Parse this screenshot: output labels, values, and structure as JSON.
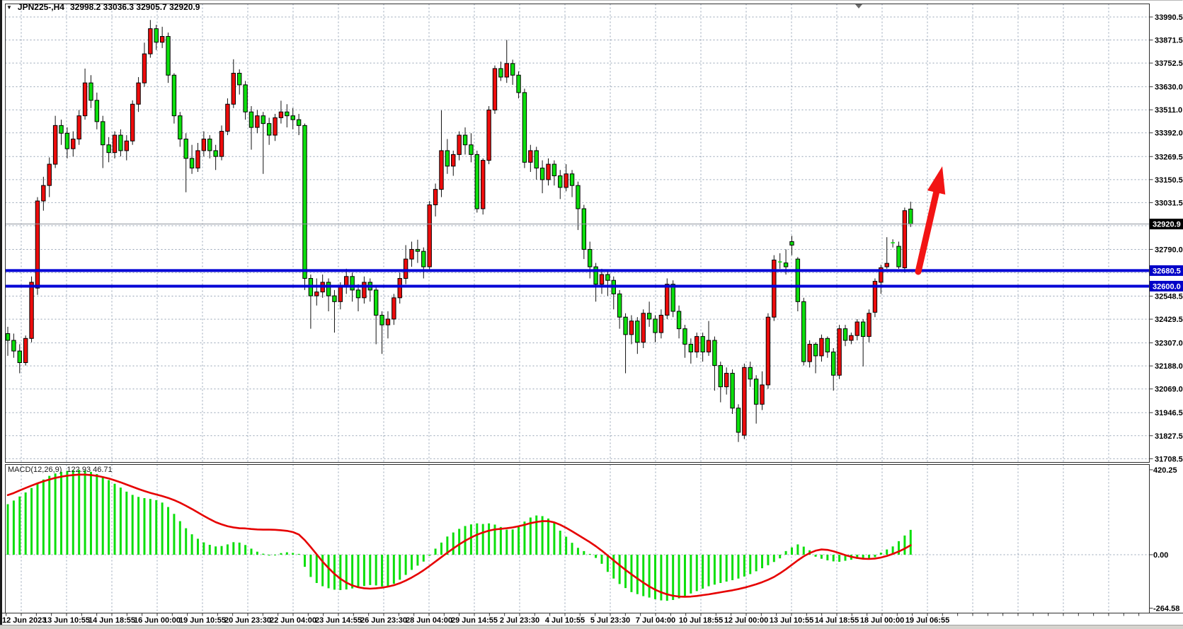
{
  "window": {
    "title_symbol": "JPN225-,H4",
    "title_values": "32998.2 33036.3 32905.7 32920.9"
  },
  "price_axis": {
    "values": [
      "33990.5",
      "33871.5",
      "33752.5",
      "33630.0",
      "33511.0",
      "33392.0",
      "33269.5",
      "33150.5",
      "33031.5",
      "32790.0",
      "32548.5",
      "32429.5",
      "32307.0",
      "32188.0",
      "32069.0",
      "31946.5",
      "31827.5",
      "31708.5"
    ]
  },
  "grid_extra_prices": [
    32912.5,
    32669.5
  ],
  "time_axis": {
    "labels": [
      "12 Jun 2023",
      "13 Jun 10:55",
      "14 Jun 18:55",
      "16 Jun 00:00",
      "19 Jun 10:55",
      "20 Jun 23:30",
      "22 Jun 04:00",
      "23 Jun 14:55",
      "26 Jun 23:30",
      "28 Jun 04:00",
      "29 Jun 14:55",
      "2 Jul 23:30",
      "4 Jul 10:55",
      "5 Jul 23:30",
      "7 Jul 04:00",
      "10 Jul 18:55",
      "12 Jul 00:00",
      "13 Jul 10:55",
      "14 Jul 18:55",
      "18 Jul 00:00",
      "19 Jul 06:55"
    ]
  },
  "hlines": [
    {
      "price": 32680.5,
      "label": "32680.5"
    },
    {
      "price": 32600.0,
      "label": "32600.0"
    }
  ],
  "current_price": {
    "price": 32920.9,
    "label": "32920.9"
  },
  "macd_panel": {
    "label": "MACD(12,26,9)",
    "values": "122.93 46.71",
    "axis": [
      "420.25",
      "0.00",
      "-264.58"
    ]
  },
  "colors": {
    "bull": "#ee0c0c",
    "bear": "#0cdf0c",
    "wick": "#111111",
    "body_border": "#000000",
    "grid": "#94a2b4",
    "hline": "#0202d6",
    "hline_label_bg": "#0202c8",
    "current_line": "#8f959e",
    "current_label_bg": "#000000",
    "signal": "#e60000",
    "histogram": "#0cdf0c",
    "arrow": "#f21414",
    "text": "#000000",
    "border": "#2f2f2f"
  },
  "annotation": {
    "arrow": {
      "tail": [
        1297,
        384
      ],
      "tip": [
        1331,
        235
      ]
    }
  },
  "chart_data": {
    "type": "candlestick",
    "symbol": "JPN225",
    "timeframe": "H4",
    "title": "JPN225-,H4 32998.2 33036.3 32905.7 32920.9",
    "x_range": [
      "12 Jun 2023",
      "19 Jul 2023 06:55"
    ],
    "price_range_top": 34050,
    "price_range_bottom": 31690,
    "last_ohlc": {
      "open": "32998.2",
      "high": "33036.3",
      "low": "32905.7",
      "close": "32920.9"
    },
    "support_resistance_levels": [
      32680.5,
      32600.0
    ],
    "candles": [
      [
        32355,
        32390,
        32240,
        32320
      ],
      [
        32320,
        32355,
        32230,
        32265
      ],
      [
        32265,
        32300,
        32150,
        32205
      ],
      [
        32205,
        32345,
        32190,
        32330
      ],
      [
        32330,
        32650,
        32310,
        32620
      ],
      [
        32590,
        33060,
        32555,
        33040
      ],
      [
        33040,
        33165,
        32990,
        33120
      ],
      [
        33120,
        33265,
        33060,
        33230
      ],
      [
        33230,
        33480,
        33210,
        33430
      ],
      [
        33430,
        33460,
        33330,
        33390
      ],
      [
        33390,
        33420,
        33260,
        33310
      ],
      [
        33310,
        33400,
        33270,
        33360
      ],
      [
        33360,
        33510,
        33330,
        33480
      ],
      [
        33480,
        33724,
        33460,
        33650
      ],
      [
        33650,
        33690,
        33520,
        33560
      ],
      [
        33560,
        33600,
        33410,
        33450
      ],
      [
        33450,
        33480,
        33210,
        33330
      ],
      [
        33330,
        33370,
        33240,
        33290
      ],
      [
        33290,
        33400,
        33260,
        33380
      ],
      [
        33380,
        33410,
        33270,
        33300
      ],
      [
        33300,
        33380,
        33250,
        33350
      ],
      [
        33350,
        33560,
        33330,
        33540
      ],
      [
        33540,
        33680,
        33500,
        33650
      ],
      [
        33650,
        33858,
        33630,
        33800
      ],
      [
        33800,
        33975,
        33780,
        33930
      ],
      [
        33930,
        33950,
        33820,
        33860
      ],
      [
        33860,
        33940,
        33830,
        33890
      ],
      [
        33890,
        33910,
        33650,
        33690
      ],
      [
        33690,
        33700,
        33440,
        33480
      ],
      [
        33480,
        33500,
        33320,
        33360
      ],
      [
        33360,
        33390,
        33085,
        33260
      ],
      [
        33260,
        33330,
        33180,
        33210
      ],
      [
        33210,
        33340,
        33190,
        33300
      ],
      [
        33300,
        33400,
        33270,
        33360
      ],
      [
        33360,
        33380,
        33260,
        33300
      ],
      [
        33300,
        33330,
        33200,
        33270
      ],
      [
        33270,
        33430,
        33250,
        33400
      ],
      [
        33400,
        33570,
        33380,
        33540
      ],
      [
        33540,
        33772,
        33520,
        33700
      ],
      [
        33700,
        33720,
        33590,
        33640
      ],
      [
        33640,
        33660,
        33460,
        33500
      ],
      [
        33500,
        33530,
        33305,
        33420
      ],
      [
        33420,
        33510,
        33390,
        33480
      ],
      [
        33480,
        33500,
        33180,
        33440
      ],
      [
        33440,
        33470,
        33330,
        33380
      ],
      [
        33380,
        33490,
        33350,
        33470
      ],
      [
        33470,
        33558,
        33440,
        33500
      ],
      [
        33500,
        33540,
        33420,
        33480
      ],
      [
        33480,
        33520,
        33410,
        33460
      ],
      [
        33460,
        33490,
        33380,
        33430
      ],
      [
        33430,
        33440,
        32580,
        32640
      ],
      [
        32640,
        32660,
        32380,
        32550
      ],
      [
        32550,
        32640,
        32500,
        32570
      ],
      [
        32570,
        32660,
        32540,
        32620
      ],
      [
        32620,
        32640,
        32470,
        32550
      ],
      [
        32550,
        32580,
        32360,
        32520
      ],
      [
        32520,
        32620,
        32480,
        32600
      ],
      [
        32600,
        32690,
        32560,
        32650
      ],
      [
        32650,
        32670,
        32520,
        32580
      ],
      [
        32580,
        32610,
        32470,
        32540
      ],
      [
        32540,
        32650,
        32510,
        32620
      ],
      [
        32620,
        32640,
        32520,
        32580
      ],
      [
        32580,
        32600,
        32300,
        32450
      ],
      [
        32450,
        32470,
        32250,
        32400
      ],
      [
        32400,
        32470,
        32330,
        32430
      ],
      [
        32430,
        32560,
        32400,
        32540
      ],
      [
        32540,
        32670,
        32510,
        32640
      ],
      [
        32640,
        32812,
        32610,
        32740
      ],
      [
        32740,
        32830,
        32700,
        32790
      ],
      [
        32790,
        32840,
        32720,
        32780
      ],
      [
        32780,
        32800,
        32640,
        32700
      ],
      [
        32700,
        33040,
        32680,
        33020
      ],
      [
        33020,
        33130,
        32960,
        33100
      ],
      [
        33100,
        33508,
        33060,
        33300
      ],
      [
        33300,
        33360,
        33180,
        33220
      ],
      [
        33220,
        33300,
        33170,
        33280
      ],
      [
        33280,
        33400,
        33250,
        33380
      ],
      [
        33380,
        33420,
        33280,
        33330
      ],
      [
        33330,
        33390,
        33240,
        33280
      ],
      [
        33280,
        33300,
        32980,
        33000
      ],
      [
        33000,
        33260,
        32970,
        33250
      ],
      [
        33250,
        33530,
        33230,
        33510
      ],
      [
        33510,
        33740,
        33490,
        33724
      ],
      [
        33724,
        33760,
        33660,
        33680
      ],
      [
        33680,
        33872,
        33650,
        33750
      ],
      [
        33750,
        33770,
        33640,
        33690
      ],
      [
        33690,
        33710,
        33570,
        33600
      ],
      [
        33600,
        33620,
        33210,
        33240
      ],
      [
        33240,
        33330,
        33190,
        33300
      ],
      [
        33300,
        33320,
        33150,
        33210
      ],
      [
        33210,
        33250,
        33080,
        33150
      ],
      [
        33150,
        33260,
        33120,
        33230
      ],
      [
        33230,
        33250,
        33120,
        33170
      ],
      [
        33170,
        33200,
        33050,
        33110
      ],
      [
        33110,
        33230,
        33090,
        33180
      ],
      [
        33180,
        33200,
        33060,
        33120
      ],
      [
        33120,
        33140,
        32890,
        33000
      ],
      [
        33000,
        33020,
        32740,
        32790
      ],
      [
        32790,
        32830,
        32640,
        32700
      ],
      [
        32700,
        32720,
        32520,
        32610
      ],
      [
        32610,
        32690,
        32560,
        32660
      ],
      [
        32660,
        32680,
        32550,
        32630
      ],
      [
        32630,
        32650,
        32480,
        32560
      ],
      [
        32560,
        32580,
        32380,
        32440
      ],
      [
        32440,
        32460,
        32150,
        32350
      ],
      [
        32350,
        32450,
        32300,
        32420
      ],
      [
        32420,
        32440,
        32250,
        32310
      ],
      [
        32310,
        32480,
        32280,
        32460
      ],
      [
        32460,
        32520,
        32390,
        32430
      ],
      [
        32430,
        32450,
        32310,
        32360
      ],
      [
        32360,
        32480,
        32330,
        32450
      ],
      [
        32450,
        32640,
        32430,
        32610
      ],
      [
        32610,
        32630,
        32440,
        32470
      ],
      [
        32470,
        32500,
        32330,
        32380
      ],
      [
        32380,
        32400,
        32230,
        32300
      ],
      [
        32300,
        32330,
        32200,
        32260
      ],
      [
        32260,
        32360,
        32230,
        32340
      ],
      [
        32340,
        32360,
        32210,
        32260
      ],
      [
        32260,
        32420,
        32240,
        32320
      ],
      [
        32320,
        32340,
        32060,
        32190
      ],
      [
        32190,
        32210,
        32000,
        32080
      ],
      [
        32080,
        32180,
        32040,
        32150
      ],
      [
        32150,
        32170,
        31940,
        31970
      ],
      [
        31970,
        31990,
        31795,
        31845
      ],
      [
        31830,
        32200,
        31810,
        32180
      ],
      [
        32180,
        32210,
        32080,
        32120
      ],
      [
        32120,
        32140,
        31890,
        31990
      ],
      [
        31990,
        32160,
        31960,
        32090
      ],
      [
        32090,
        32460,
        32070,
        32440
      ],
      [
        32440,
        32760,
        32420,
        32735
      ],
      [
        32725,
        32770,
        32690,
        32720
      ],
      [
        32720,
        32790,
        32660,
        32700
      ],
      [
        32830,
        32860,
        32760,
        32812
      ],
      [
        32740,
        32750,
        32470,
        32520
      ],
      [
        32520,
        32540,
        32190,
        32210
      ],
      [
        32210,
        32320,
        32180,
        32300
      ],
      [
        32300,
        32310,
        32150,
        32240
      ],
      [
        32240,
        32350,
        32210,
        32330
      ],
      [
        32330,
        32340,
        32230,
        32260
      ],
      [
        32260,
        32280,
        32060,
        32140
      ],
      [
        32140,
        32400,
        32120,
        32380
      ],
      [
        32380,
        32400,
        32290,
        32320
      ],
      [
        32320,
        32360,
        32300,
        32345
      ],
      [
        32345,
        32430,
        32320,
        32415
      ],
      [
        32415,
        32430,
        32185,
        32340
      ],
      [
        32340,
        32480,
        32310,
        32460
      ],
      [
        32465,
        32640,
        32440,
        32625
      ],
      [
        32620,
        32710,
        32560,
        32695
      ],
      [
        32700,
        32853,
        32690,
        32718
      ],
      [
        32824,
        32842,
        32800,
        32820
      ],
      [
        32806,
        32830,
        32690,
        32700
      ],
      [
        32695,
        33006,
        32670,
        32990
      ],
      [
        32998.2,
        33036.3,
        32905.7,
        32920.9
      ]
    ],
    "macd": {
      "parameters": "12,26,9",
      "last_histogram": 122.93,
      "last_signal": 46.71,
      "histogram": [
        250,
        268,
        288,
        308,
        330,
        352,
        372,
        390,
        402,
        410,
        415,
        418,
        420.25,
        417,
        410,
        399,
        385,
        369,
        351,
        332,
        312,
        296,
        286,
        280,
        276,
        270,
        258,
        236,
        202,
        166,
        131,
        101,
        79,
        61,
        49,
        41,
        43,
        51,
        62,
        60,
        48,
        30,
        15,
        5,
        -4,
        0,
        8,
        12,
        9,
        4,
        -60,
        -110,
        -140,
        -156,
        -166,
        -173,
        -175,
        -172,
        -167,
        -161,
        -155,
        -150,
        -152,
        -157,
        -154,
        -144,
        -124,
        -100,
        -75,
        -54,
        -34,
        -5,
        30,
        60,
        90,
        110,
        128,
        142,
        150,
        155,
        152,
        155,
        149,
        137,
        124,
        125,
        140,
        164,
        184,
        194,
        191,
        179,
        159,
        119,
        89,
        59,
        34,
        18,
        4,
        -16,
        -45,
        -85,
        -118,
        -145,
        -165,
        -185,
        -195,
        -205,
        -212,
        -220,
        -226,
        -228,
        -224,
        -216,
        -205,
        -192,
        -180,
        -168,
        -156,
        -148,
        -140,
        -133,
        -126,
        -118,
        -108,
        -96,
        -82,
        -67,
        -52,
        -36,
        -18,
        18,
        36,
        51,
        40,
        22,
        -10,
        -20,
        -28,
        -33,
        -35,
        -30,
        -25,
        -20,
        -16,
        -18,
        -12,
        10,
        26,
        41,
        67,
        95,
        122.93
      ],
      "signal": [
        295,
        305,
        318,
        330,
        342,
        353,
        363,
        372,
        380,
        386,
        391,
        394,
        396,
        396,
        394,
        390,
        384,
        377,
        368,
        358,
        347,
        336,
        325,
        315,
        306,
        298,
        290,
        281,
        270,
        257,
        242,
        226,
        209,
        192,
        176,
        161,
        150,
        141,
        135,
        131,
        130,
        127,
        125,
        124,
        124,
        123,
        121,
        118,
        112,
        100,
        72,
        38,
        2,
        -34,
        -66,
        -95,
        -119,
        -138,
        -152,
        -161,
        -166,
        -168,
        -166,
        -163,
        -158,
        -151,
        -141,
        -128,
        -113,
        -96,
        -77,
        -56,
        -34,
        -12,
        10,
        31,
        51,
        69,
        85,
        99,
        110,
        119,
        125,
        128,
        131,
        135,
        141,
        148,
        156,
        162,
        166,
        166,
        160,
        148,
        133,
        116,
        98,
        80,
        62,
        42,
        20,
        -4,
        -28,
        -52,
        -75,
        -97,
        -118,
        -138,
        -157,
        -173,
        -186,
        -196,
        -203,
        -207,
        -208,
        -207,
        -204,
        -200,
        -196,
        -191,
        -186,
        -181,
        -176,
        -170,
        -163,
        -155,
        -146,
        -136,
        -124,
        -110,
        -92,
        -72,
        -50,
        -28,
        -8,
        8,
        20,
        26,
        24,
        17,
        8,
        -2,
        -10,
        -16,
        -20,
        -21,
        -19,
        -14,
        -6,
        4,
        16,
        30,
        46.71
      ]
    }
  }
}
